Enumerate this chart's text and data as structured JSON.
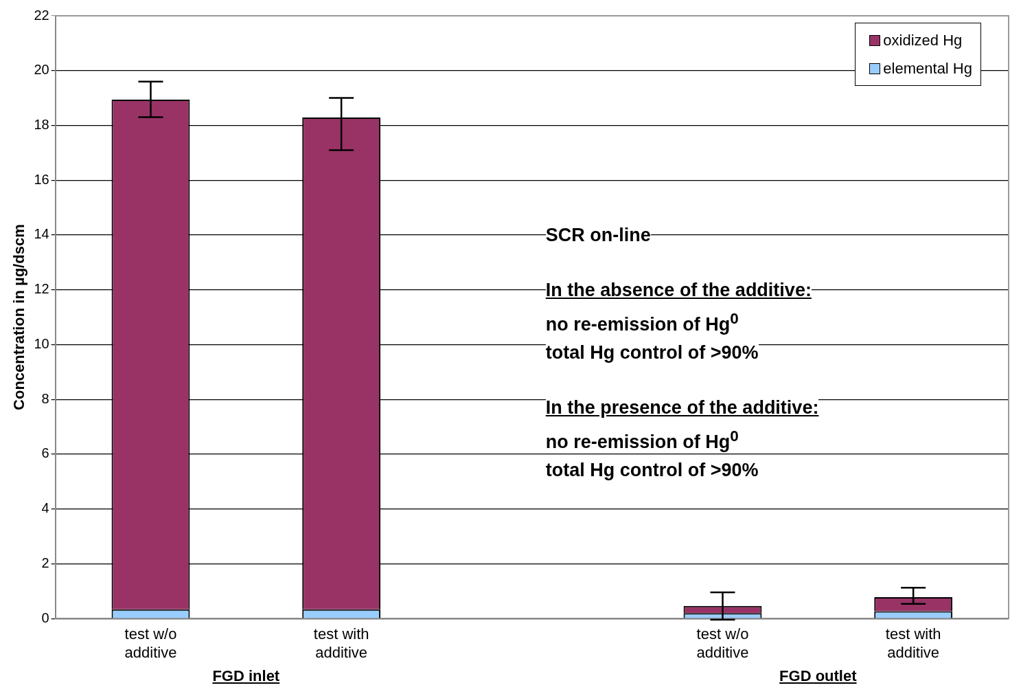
{
  "chart_data": {
    "type": "bar",
    "stacked": true,
    "ylabel": "Concentration in µg/dscm",
    "categories": [
      "test w/o additive",
      "test with additive",
      null,
      "test w/o additive",
      "test with additive"
    ],
    "series": [
      {
        "name": "elemental Hg",
        "color": "#99ccff",
        "values": [
          0.34,
          0.34,
          null,
          0.2,
          0.27
        ]
      },
      {
        "name": "oxidized Hg",
        "color": "#993366",
        "values": [
          18.6,
          17.95,
          null,
          0.26,
          0.51
        ],
        "errors": [
          [
            18.3,
            19.6
          ],
          [
            17.1,
            19.0
          ],
          null,
          0.5,
          [
            0.54,
            1.13
          ]
        ]
      }
    ],
    "ylim": [
      0,
      22
    ],
    "yticks": [
      0,
      2,
      4,
      6,
      8,
      10,
      12,
      14,
      16,
      18,
      20,
      22
    ],
    "grid": "y",
    "legend": "top right",
    "annotations": [
      "SCR on-line",
      "In the absence of the additive:",
      "no re-emission of Hg$^{0}$",
      "total Hg control of >90%",
      "In the presence of the additive:",
      "no re-emission of Hg$^{0}$",
      "total Hg control of >90%",
      "FGD inlet",
      "FGD outlet"
    ]
  }
}
